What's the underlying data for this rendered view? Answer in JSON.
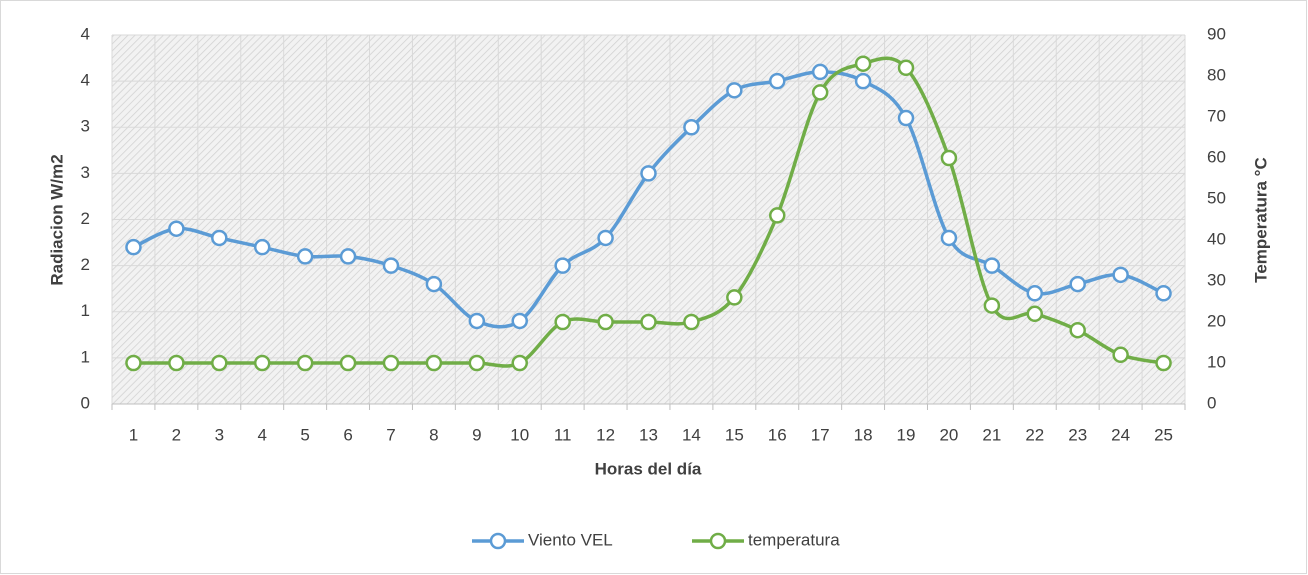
{
  "chart_data": {
    "type": "line",
    "x_label": "Horas del día",
    "y_label": "Radiacion W/m2",
    "y2_label": "Temperatura °C",
    "categories": [
      "1",
      "2",
      "3",
      "4",
      "5",
      "6",
      "7",
      "8",
      "9",
      "10",
      "11",
      "12",
      "13",
      "14",
      "15",
      "16",
      "17",
      "18",
      "19",
      "20",
      "21",
      "22",
      "23",
      "24",
      "25"
    ],
    "series": [
      {
        "name": "Viento VEL",
        "color": "#5b9bd5",
        "values": [
          1.7,
          1.9,
          1.8,
          1.7,
          1.6,
          1.6,
          1.5,
          1.3,
          0.9,
          0.9,
          1.5,
          1.8,
          2.5,
          3.0,
          3.4,
          3.5,
          3.6,
          3.5,
          3.1,
          1.8,
          1.5,
          1.2,
          1.3,
          1.4,
          1.2
        ]
      },
      {
        "name": "temperatura",
        "color": "#70ad47",
        "axis": "y2",
        "values": [
          10,
          10,
          10,
          10,
          10,
          10,
          10,
          10,
          10,
          10,
          20,
          20,
          20,
          20,
          26,
          46,
          76,
          83,
          82,
          60,
          24,
          22,
          18,
          12,
          10
        ]
      }
    ],
    "ylim": [
      0,
      4
    ],
    "yticks": [
      0,
      {
        "value": 0.5,
        "label": "1"
      },
      1,
      {
        "value": 1.5,
        "label": "2"
      },
      2,
      {
        "value": 2.5,
        "label": "3"
      },
      3,
      {
        "value": 3.5,
        "label": "4"
      },
      4
    ],
    "y2lim": [
      0,
      90
    ],
    "y2ticks": [
      0,
      10,
      20,
      30,
      40,
      50,
      60,
      70,
      80,
      90
    ],
    "grid": true,
    "legend": "bottom"
  }
}
